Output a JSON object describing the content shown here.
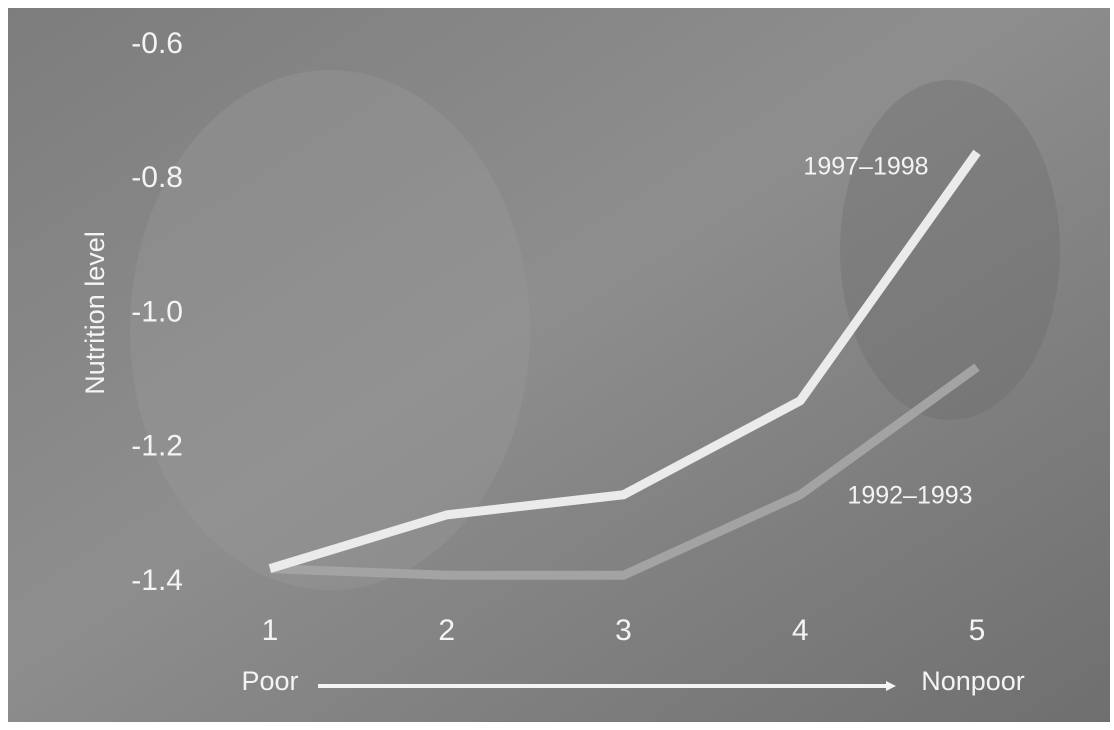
{
  "chart_data": {
    "type": "line",
    "y_label": "Nutrition level",
    "x": [
      1,
      2,
      3,
      4,
      5
    ],
    "xlim": [
      1,
      5
    ],
    "xticks": [
      1,
      2,
      3,
      4,
      5
    ],
    "ylim": [
      -1.4,
      -0.6
    ],
    "yticks": [
      -0.6,
      -0.8,
      {
        "value": -1,
        "label": "-1.0"
      },
      -1.2,
      -1.4
    ],
    "x_start_label": "Poor",
    "x_end_label": "Nonpoor",
    "series": [
      {
        "name": "1997–1998",
        "color": "#ebebeb",
        "values": [
          -1.38,
          -1.3,
          -1.27,
          -1.13,
          -0.76
        ]
      },
      {
        "name": "1992–1993",
        "color": "#a3a3a3",
        "values": [
          -1.38,
          -1.39,
          -1.39,
          -1.27,
          -1.08
        ]
      }
    ]
  }
}
